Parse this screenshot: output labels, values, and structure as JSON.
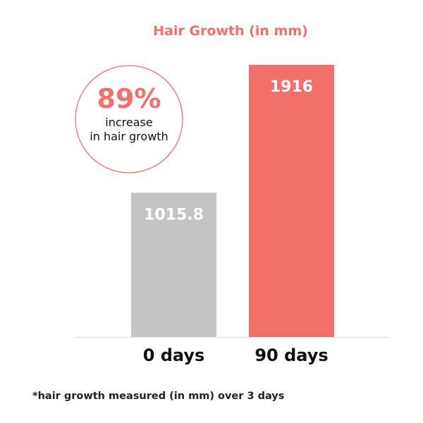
{
  "colors": {
    "accent": "#f2706a",
    "baseline_bar": "#c4c4c4",
    "axis": "#e6e6e6",
    "circle": "#f2706a"
  },
  "chart_data": {
    "type": "bar",
    "title": "Hair Growth (in mm)",
    "categories": [
      "0 days",
      "90 days"
    ],
    "values": [
      1015.8,
      1916
    ],
    "value_labels": [
      "1015.8",
      "1916"
    ],
    "ylim": [
      0,
      1916
    ],
    "grid": false,
    "legend": "none",
    "annotation": {
      "big": "89%",
      "line1": "increase",
      "line2": "in hair growth"
    }
  },
  "footnote": "*hair growth measured (in mm) over 3 days"
}
